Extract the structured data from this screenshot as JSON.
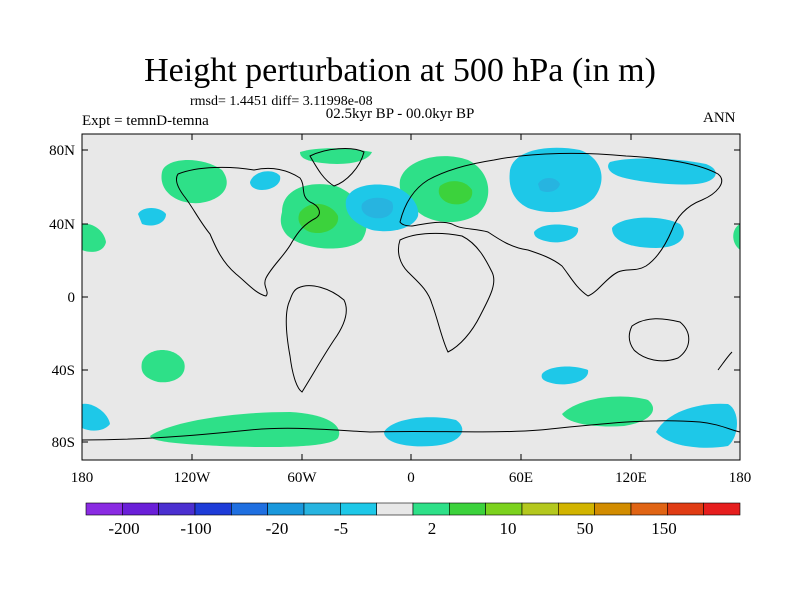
{
  "title": "Height perturbation at 500 hPa (in m)",
  "stats_line": "rmsd= 1.4451 diff= 3.11998e-08",
  "period_line": "02.5kyr BP - 00.0kyr BP",
  "experiment_label": "Expt = temnD-temna",
  "season_label": "ANN",
  "map": {
    "lon_ticks": [
      "180",
      "120W",
      "60W",
      "0",
      "60E",
      "120E",
      "180"
    ],
    "lat_ticks": [
      "80N",
      "40N",
      "0",
      "40S",
      "80S"
    ],
    "background_color": "#e8e8e8"
  },
  "colorbar": {
    "colors": [
      "#8a2be2",
      "#6a1fd8",
      "#4b2fd0",
      "#1e3cd8",
      "#1f6fe0",
      "#1a98dc",
      "#27b4e0",
      "#1ec8e8",
      "#e8e8e8",
      "#2ee088",
      "#3cd23c",
      "#7cd21e",
      "#b4c81e",
      "#d2b400",
      "#d28c00",
      "#e06414",
      "#e03c14",
      "#e61e1e"
    ],
    "labels": [
      "-200",
      "-100",
      "-20",
      "-5",
      "2",
      "10",
      "50",
      "150"
    ]
  }
}
